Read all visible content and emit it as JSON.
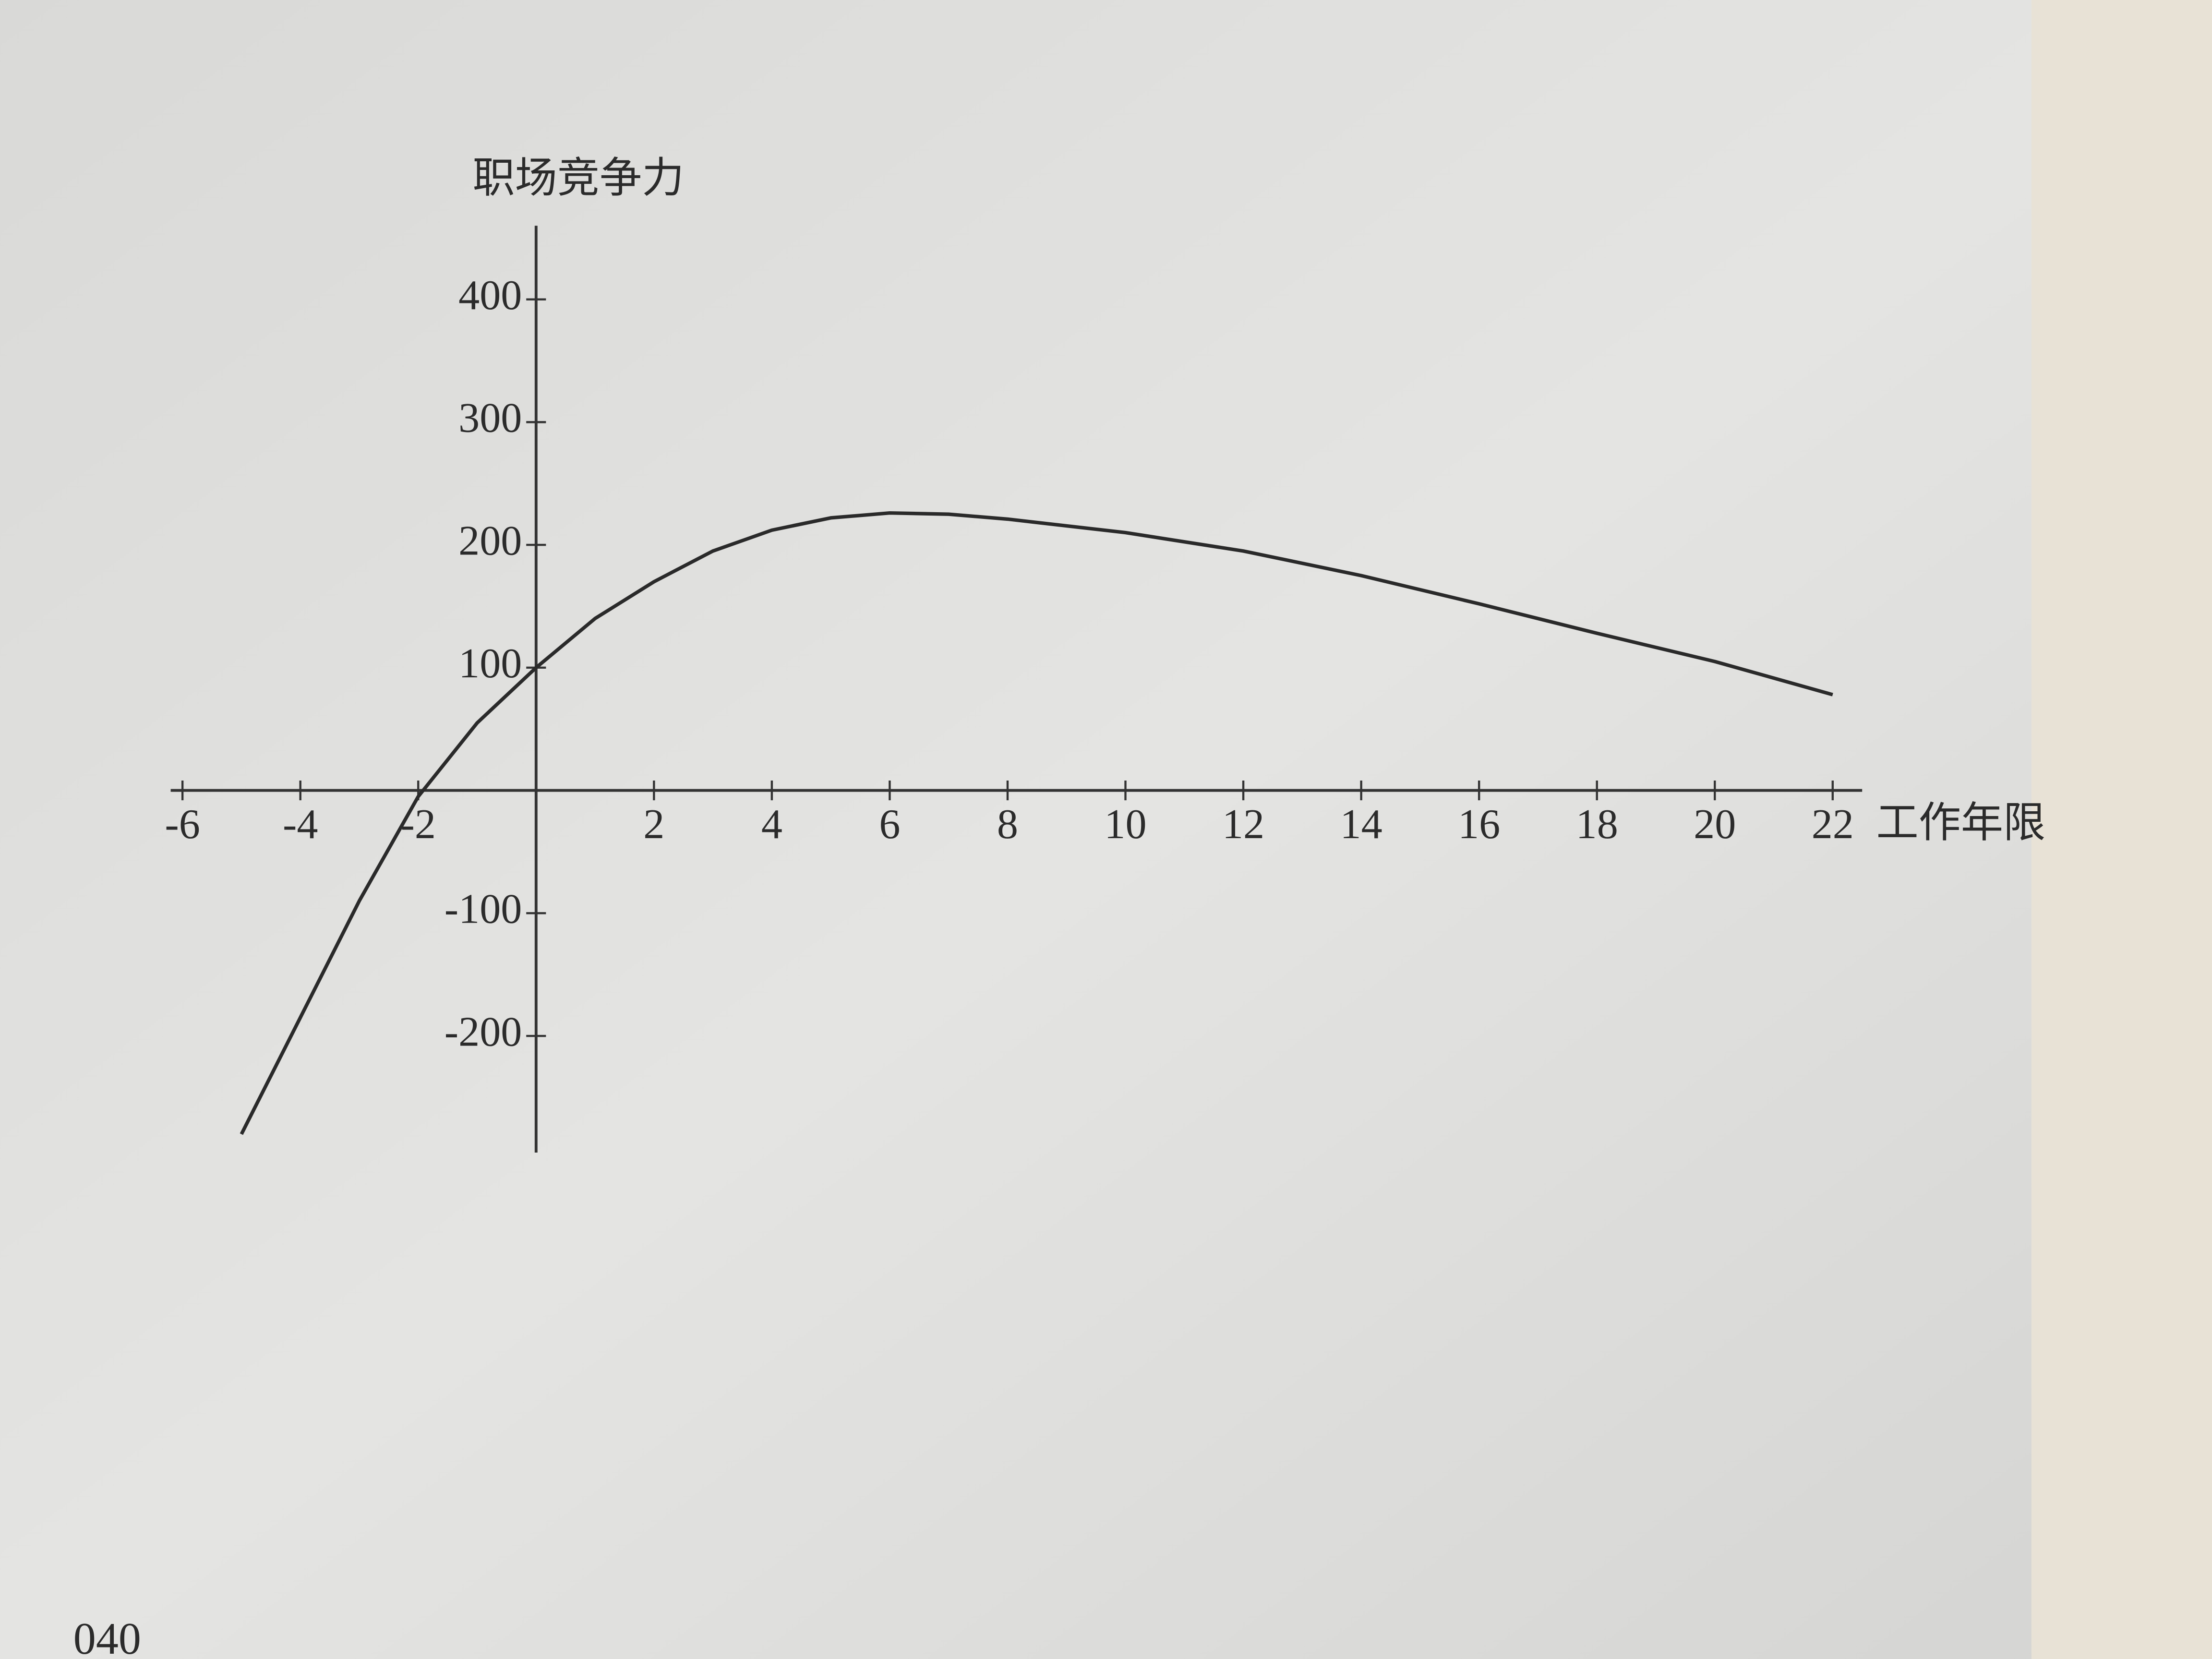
{
  "chart_data": {
    "type": "line",
    "x_label": "工作年限",
    "y_label": "职场竞争力",
    "x": [
      -5,
      -4,
      -3,
      -2,
      -1,
      0,
      1,
      2,
      3,
      4,
      5,
      6,
      7,
      8,
      10,
      12,
      14,
      16,
      18,
      20,
      22
    ],
    "series": [
      {
        "color": "#2a2a2a",
        "values": [
          -280,
          -185,
          -90,
          -5,
          55,
          100,
          140,
          170,
          195,
          212,
          222,
          226,
          225,
          221,
          210,
          195,
          175,
          152,
          128,
          105,
          78
        ]
      }
    ],
    "xlim": [
      -6.2,
      22.5
    ],
    "ylim": [
      -295,
      460
    ],
    "xticks": [
      -6,
      -4,
      -2,
      2,
      4,
      6,
      8,
      10,
      12,
      14,
      16,
      18,
      20,
      22
    ],
    "yticks": [
      -200,
      -100,
      100,
      200,
      300,
      400
    ]
  },
  "page_number": "040"
}
